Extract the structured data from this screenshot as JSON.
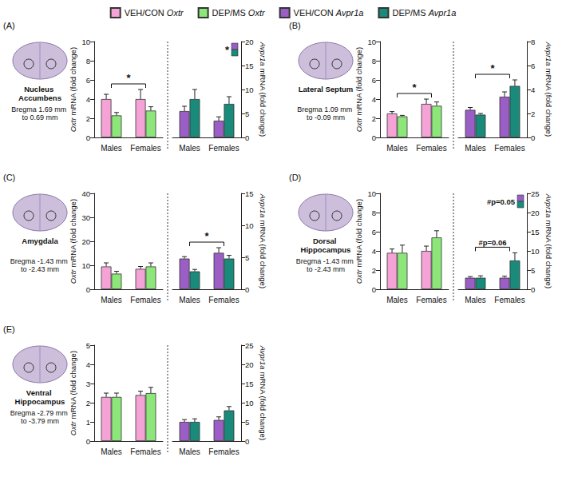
{
  "chart_data": [
    {
      "type": "bar",
      "panel": "(A)",
      "title": "Nucleus Accumbens",
      "subtitle": "Bregma 1.69 mm to 0.69 mm",
      "categories": [
        "Males",
        "Females"
      ],
      "ylabel": "Oxtr mRNA (fold change)",
      "y2label": "Avpr1a mRNA (fold change)",
      "ylim": [
        0,
        10
      ],
      "yticks": [
        0,
        2,
        4,
        6,
        8,
        10
      ],
      "y2lim": [
        0,
        20
      ],
      "y2ticks": [
        0,
        5,
        10,
        15,
        20
      ],
      "grid": false,
      "legend": "top",
      "series": [
        {
          "name": "VEH/CON Oxtr",
          "color": "#f5a3d6",
          "values": [
            4.0,
            4.0
          ],
          "errors": [
            0.5,
            1.0
          ]
        },
        {
          "name": "DEP/MS Oxtr",
          "color": "#8de67a",
          "values": [
            2.3,
            2.8
          ],
          "errors": [
            0.3,
            0.4
          ]
        },
        {
          "name": "VEH/CON Avpr1a",
          "color": "#9a5ec4",
          "axis": "y2",
          "values": [
            5.5,
            3.5
          ],
          "errors": [
            1.0,
            0.8
          ]
        },
        {
          "name": "DEP/MS Avpr1a",
          "color": "#1a8a7a",
          "axis": "y2",
          "values": [
            8.0,
            7.0
          ],
          "errors": [
            2.0,
            1.5
          ]
        }
      ],
      "annotations": [
        {
          "text": "*",
          "type": "sex",
          "axis": "y"
        },
        {
          "text": "*",
          "type": "treatment",
          "axis": "y2"
        }
      ]
    },
    {
      "type": "bar",
      "panel": "(B)",
      "title": "Lateral Septum",
      "subtitle": "Bregma 1.09 mm to -0.09 mm",
      "categories": [
        "Males",
        "Females"
      ],
      "ylabel": "Oxtr mRNA (fold change)",
      "y2label": "Avpr1a mRNA (fold change)",
      "ylim": [
        0,
        10
      ],
      "yticks": [
        0,
        2,
        4,
        6,
        8,
        10
      ],
      "y2lim": [
        0,
        8
      ],
      "y2ticks": [
        0,
        2,
        4,
        6,
        8
      ],
      "grid": false,
      "legend": "top",
      "series": [
        {
          "name": "VEH/CON Oxtr",
          "color": "#f5a3d6",
          "values": [
            2.5,
            3.5
          ],
          "errors": [
            0.2,
            0.5
          ]
        },
        {
          "name": "DEP/MS Oxtr",
          "color": "#8de67a",
          "values": [
            2.2,
            3.3
          ],
          "errors": [
            0.1,
            0.4
          ]
        },
        {
          "name": "VEH/CON Avpr1a",
          "color": "#9a5ec4",
          "axis": "y2",
          "values": [
            2.3,
            3.4
          ],
          "errors": [
            0.2,
            0.4
          ]
        },
        {
          "name": "DEP/MS Avpr1a",
          "color": "#1a8a7a",
          "axis": "y2",
          "values": [
            1.9,
            4.3
          ],
          "errors": [
            0.1,
            0.5
          ]
        }
      ],
      "annotations": [
        {
          "text": "*",
          "type": "sex",
          "axis": "y"
        },
        {
          "text": "*",
          "type": "sex",
          "axis": "y2"
        }
      ]
    },
    {
      "type": "bar",
      "panel": "(C)",
      "title": "Amygdala",
      "subtitle": "Bregma -1.43 mm to -2.43 mm",
      "categories": [
        "Males",
        "Females"
      ],
      "ylabel": "Oxtr mRNA (fold change)",
      "y2label": "Avpr1a mRNA (fold change)",
      "ylim": [
        0,
        40
      ],
      "yticks": [
        0,
        10,
        20,
        30,
        40
      ],
      "y2lim": [
        0,
        15
      ],
      "y2ticks": [
        0,
        5,
        10,
        15
      ],
      "grid": false,
      "legend": "top",
      "series": [
        {
          "name": "VEH/CON Oxtr",
          "color": "#f5a3d6",
          "values": [
            9.5,
            8.5
          ],
          "errors": [
            1.5,
            1.0
          ]
        },
        {
          "name": "DEP/MS Oxtr",
          "color": "#8de67a",
          "values": [
            6.5,
            9.5
          ],
          "errors": [
            1.0,
            1.5
          ]
        },
        {
          "name": "VEH/CON Avpr1a",
          "color": "#9a5ec4",
          "axis": "y2",
          "values": [
            4.8,
            5.7
          ],
          "errors": [
            0.3,
            0.8
          ]
        },
        {
          "name": "DEP/MS Avpr1a",
          "color": "#1a8a7a",
          "axis": "y2",
          "values": [
            2.8,
            4.8
          ],
          "errors": [
            0.3,
            0.5
          ]
        }
      ],
      "annotations": [
        {
          "text": "*",
          "type": "sex",
          "axis": "y2"
        }
      ]
    },
    {
      "type": "bar",
      "panel": "(D)",
      "title": "Dorsal Hippocampus",
      "subtitle": "Bregma -1.43 mm to -2.43 mm",
      "categories": [
        "Males",
        "Females"
      ],
      "ylabel": "Oxtr mRNA (fold change)",
      "y2label": "Avpr1a mRNA (fold change)",
      "ylim": [
        0,
        10
      ],
      "yticks": [
        0,
        2,
        4,
        6,
        8,
        10
      ],
      "y2lim": [
        0,
        25
      ],
      "y2ticks": [
        0,
        5,
        10,
        15,
        20,
        25
      ],
      "grid": false,
      "legend": "top",
      "series": [
        {
          "name": "VEH/CON Oxtr",
          "color": "#f5a3d6",
          "values": [
            3.8,
            4.0
          ],
          "errors": [
            0.4,
            0.5
          ]
        },
        {
          "name": "DEP/MS Oxtr",
          "color": "#8de67a",
          "values": [
            3.8,
            5.4
          ],
          "errors": [
            0.8,
            0.7
          ]
        },
        {
          "name": "VEH/CON Avpr1a",
          "color": "#9a5ec4",
          "axis": "y2",
          "values": [
            3.0,
            3.0
          ],
          "errors": [
            0.3,
            0.4
          ]
        },
        {
          "name": "DEP/MS Avpr1a",
          "color": "#1a8a7a",
          "axis": "y2",
          "values": [
            3.0,
            7.5
          ],
          "errors": [
            0.5,
            2.0
          ]
        }
      ],
      "annotations": [
        {
          "text": "#p=0.05",
          "type": "treatment",
          "axis": "y2"
        },
        {
          "text": "#p=0.06",
          "type": "sex",
          "axis": "y2"
        }
      ]
    },
    {
      "type": "bar",
      "panel": "(E)",
      "title": "Ventral Hippocampus",
      "subtitle": "Bregma -2.79 mm to -3.79 mm",
      "categories": [
        "Males",
        "Females"
      ],
      "ylabel": "Oxtr mRNA (fold change)",
      "y2label": "Avpr1a mRNA (fold change)",
      "ylim": [
        0,
        5
      ],
      "yticks": [
        0,
        1,
        2,
        3,
        4,
        5
      ],
      "y2lim": [
        0,
        25
      ],
      "y2ticks": [
        0,
        5,
        10,
        15,
        20,
        25
      ],
      "grid": false,
      "legend": "top",
      "series": [
        {
          "name": "VEH/CON Oxtr",
          "color": "#f5a3d6",
          "values": [
            2.3,
            2.4
          ],
          "errors": [
            0.2,
            0.2
          ]
        },
        {
          "name": "DEP/MS Oxtr",
          "color": "#8de67a",
          "values": [
            2.3,
            2.5
          ],
          "errors": [
            0.2,
            0.3
          ]
        },
        {
          "name": "VEH/CON Avpr1a",
          "color": "#9a5ec4",
          "axis": "y2",
          "values": [
            5.0,
            5.5
          ],
          "errors": [
            0.6,
            0.8
          ]
        },
        {
          "name": "DEP/MS Avpr1a",
          "color": "#1a8a7a",
          "axis": "y2",
          "values": [
            5.0,
            8.0
          ],
          "errors": [
            0.8,
            1.0
          ]
        }
      ],
      "annotations": []
    }
  ]
}
